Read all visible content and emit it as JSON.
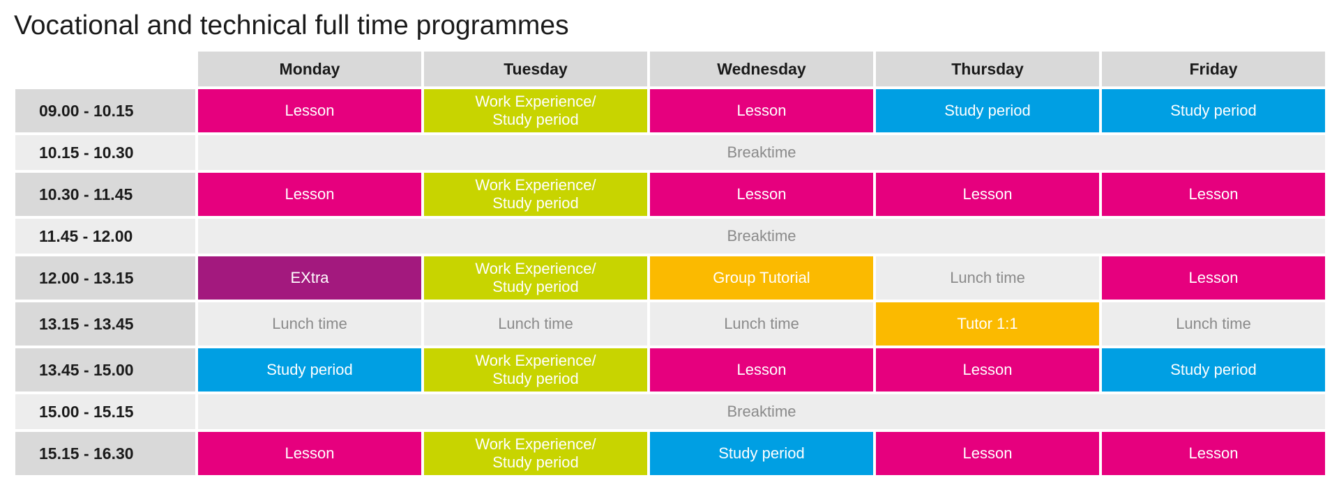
{
  "title": "Vocational and technical full time programmes",
  "colors": {
    "lesson": "#e6007e",
    "work_experience": "#c8d400",
    "study_period": "#009fe3",
    "extra": "#a3197e",
    "tutorial": "#fbba00",
    "neutral": "#ededed",
    "header": "#d9d9d9"
  },
  "days": [
    "Monday",
    "Tuesday",
    "Wednesday",
    "Thursday",
    "Friday"
  ],
  "rows": [
    {
      "time": "09.00 - 10.15",
      "cells": [
        {
          "text": "Lesson",
          "kind": "lesson"
        },
        {
          "text": "Work Experience/\nStudy period",
          "kind": "work"
        },
        {
          "text": "Lesson",
          "kind": "lesson"
        },
        {
          "text": "Study period",
          "kind": "study"
        },
        {
          "text": "Study period",
          "kind": "study"
        }
      ]
    },
    {
      "time": "10.15 - 10.30",
      "break": "Breaktime"
    },
    {
      "time": "10.30 - 11.45",
      "cells": [
        {
          "text": "Lesson",
          "kind": "lesson"
        },
        {
          "text": "Work Experience/\nStudy period",
          "kind": "work"
        },
        {
          "text": "Lesson",
          "kind": "lesson"
        },
        {
          "text": "Lesson",
          "kind": "lesson"
        },
        {
          "text": "Lesson",
          "kind": "lesson"
        }
      ]
    },
    {
      "time": "11.45 - 12.00",
      "break": "Breaktime"
    },
    {
      "time": "12.00 - 13.15",
      "cells": [
        {
          "text": "EXtra",
          "kind": "extra"
        },
        {
          "text": "Work Experience/\nStudy period",
          "kind": "work"
        },
        {
          "text": "Group Tutorial",
          "kind": "tutorial"
        },
        {
          "text": "Lunch time",
          "kind": "lunch"
        },
        {
          "text": "Lesson",
          "kind": "lesson"
        }
      ]
    },
    {
      "time": "13.15 - 13.45",
      "cells": [
        {
          "text": "Lunch time",
          "kind": "lunch"
        },
        {
          "text": "Lunch time",
          "kind": "lunch"
        },
        {
          "text": "Lunch time",
          "kind": "lunch"
        },
        {
          "text": "Tutor 1:1",
          "kind": "tutorial"
        },
        {
          "text": "Lunch time",
          "kind": "lunch"
        }
      ]
    },
    {
      "time": "13.45 - 15.00",
      "cells": [
        {
          "text": "Study period",
          "kind": "study"
        },
        {
          "text": "Work Experience/\nStudy period",
          "kind": "work"
        },
        {
          "text": "Lesson",
          "kind": "lesson"
        },
        {
          "text": "Lesson",
          "kind": "lesson"
        },
        {
          "text": "Study period",
          "kind": "study"
        }
      ]
    },
    {
      "time": "15.00 - 15.15",
      "break": "Breaktime"
    },
    {
      "time": "15.15 - 16.30",
      "cells": [
        {
          "text": "Lesson",
          "kind": "lesson"
        },
        {
          "text": "Work Experience/\nStudy period",
          "kind": "work"
        },
        {
          "text": "Study period",
          "kind": "study"
        },
        {
          "text": "Lesson",
          "kind": "lesson"
        },
        {
          "text": "Lesson",
          "kind": "lesson"
        }
      ]
    }
  ]
}
